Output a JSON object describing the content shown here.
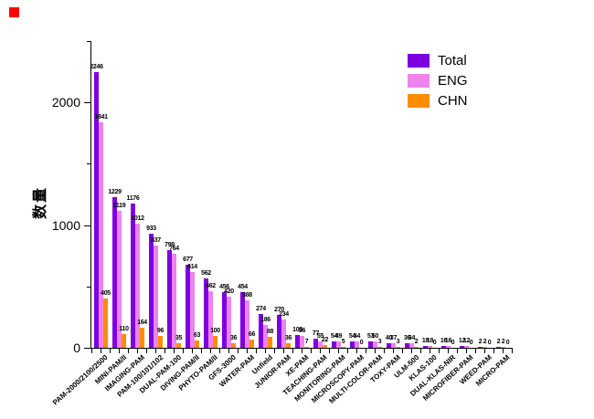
{
  "chart_data": {
    "type": "bar",
    "title": "",
    "ylabel": "数量",
    "xlabel": "",
    "legend_position": "top-right",
    "grid": false,
    "background": "#ffffff",
    "axis_color": "#000000",
    "ylim": [
      0,
      2500
    ],
    "yticks": [
      0,
      1000,
      2000
    ],
    "y_minor_ticks": [
      500,
      1500,
      2500
    ],
    "categories": [
      "PAM-2000/2100/2500",
      "MINI-PAM/II",
      "IMAGING-PAM",
      "PAM-100/101/102",
      "DUAL-PAM-100",
      "DIVING-PAM/II",
      "PHYTO-PAM/II",
      "GFS-3000",
      "WATER-PAM",
      "Unfield",
      "JUNIOR-PAM",
      "XE-PAM",
      "TEACHING-PAM",
      "MONITORING-PAM",
      "MICROSCOPY-PAM",
      "MULTI-COLOR-PAM",
      "TOXY-PAM",
      "ULM-500",
      "KLAS-100",
      "DUAL-KLAS-NIR",
      "MICROFIBER-PAM",
      "WEED-PAM",
      "MICRO-PAM"
    ],
    "series": [
      {
        "name": "Total",
        "color": "#7D00E0",
        "values": [
          2246,
          1229,
          1176,
          933,
          799,
          677,
          562,
          456,
          454,
          274,
          270,
          103,
          77,
          54,
          54,
          53,
          40,
          36,
          18,
          16,
          12,
          2,
          2
        ]
      },
      {
        "name": "ENG",
        "color": "#EE82EE",
        "values": [
          1841,
          1119,
          1012,
          837,
          764,
          614,
          462,
          420,
          388,
          186,
          234,
          96,
          55,
          49,
          54,
          50,
          37,
          34,
          18,
          16,
          12,
          2,
          2
        ]
      },
      {
        "name": "CHN",
        "color": "#FF8C00",
        "values": [
          405,
          110,
          164,
          96,
          35,
          63,
          100,
          36,
          66,
          88,
          36,
          7,
          22,
          5,
          0,
          3,
          3,
          2,
          0,
          0,
          0,
          0,
          0
        ]
      }
    ]
  },
  "ui": {
    "selection_handle_color": "#FF0000"
  }
}
